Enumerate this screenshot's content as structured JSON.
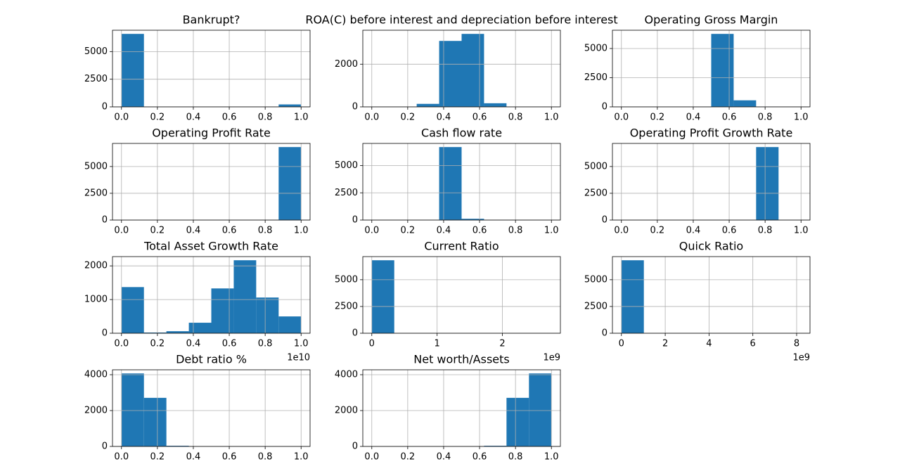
{
  "chart_data": [
    {
      "type": "histogram",
      "title": "Bankrupt?",
      "bins": [
        0,
        0.125,
        0.25,
        0.375,
        0.5,
        0.625,
        0.75,
        0.875,
        1
      ],
      "counts": [
        6599,
        0,
        0,
        0,
        0,
        0,
        0,
        220
      ],
      "xlim": [
        -0.05,
        1.05
      ],
      "ylim": [
        0,
        6929
      ],
      "xticks": [
        {
          "value": 0,
          "label": "0.0"
        },
        {
          "value": 0.2,
          "label": "0.2"
        },
        {
          "value": 0.4,
          "label": "0.4"
        },
        {
          "value": 0.6,
          "label": "0.6"
        },
        {
          "value": 0.8,
          "label": "0.8"
        },
        {
          "value": 1,
          "label": "1.0"
        }
      ],
      "yticks": [
        0,
        2500,
        5000
      ],
      "grid": true,
      "color": "#1f77b4"
    },
    {
      "type": "histogram",
      "title": "ROA(C) before interest and depreciation before interest",
      "bins": [
        0,
        0.125,
        0.25,
        0.375,
        0.5,
        0.625,
        0.75,
        0.875,
        1
      ],
      "counts": [
        0,
        0,
        140,
        3090,
        3420,
        169,
        0,
        0
      ],
      "xlim": [
        -0.05,
        1.05
      ],
      "ylim": [
        0,
        3591
      ],
      "xticks": [
        {
          "value": 0,
          "label": "0.0"
        },
        {
          "value": 0.2,
          "label": "0.2"
        },
        {
          "value": 0.4,
          "label": "0.4"
        },
        {
          "value": 0.6,
          "label": "0.6"
        },
        {
          "value": 0.8,
          "label": "0.8"
        },
        {
          "value": 1,
          "label": "1.0"
        }
      ],
      "yticks": [
        0,
        2000
      ],
      "grid": true,
      "color": "#1f77b4"
    },
    {
      "type": "histogram",
      "title": "Operating Gross Margin",
      "bins": [
        0,
        0.125,
        0.25,
        0.375,
        0.5,
        0.625,
        0.75,
        0.875,
        1
      ],
      "counts": [
        0,
        0,
        0,
        0,
        6253,
        560,
        6,
        0
      ],
      "xlim": [
        -0.05,
        1.05
      ],
      "ylim": [
        0,
        6566
      ],
      "xticks": [
        {
          "value": 0,
          "label": "0.0"
        },
        {
          "value": 0.2,
          "label": "0.2"
        },
        {
          "value": 0.4,
          "label": "0.4"
        },
        {
          "value": 0.6,
          "label": "0.6"
        },
        {
          "value": 0.8,
          "label": "0.8"
        },
        {
          "value": 1,
          "label": "1.0"
        }
      ],
      "yticks": [
        0,
        2500,
        5000
      ],
      "grid": true,
      "color": "#1f77b4"
    },
    {
      "type": "histogram",
      "title": "Operating Profit Rate",
      "bins": [
        0,
        0.125,
        0.25,
        0.375,
        0.5,
        0.625,
        0.75,
        0.875,
        1
      ],
      "counts": [
        1,
        0,
        0,
        0,
        0,
        0,
        0,
        6818
      ],
      "xlim": [
        -0.05,
        1.05
      ],
      "ylim": [
        0,
        7159
      ],
      "xticks": [
        {
          "value": 0,
          "label": "0.0"
        },
        {
          "value": 0.2,
          "label": "0.2"
        },
        {
          "value": 0.4,
          "label": "0.4"
        },
        {
          "value": 0.6,
          "label": "0.6"
        },
        {
          "value": 0.8,
          "label": "0.8"
        },
        {
          "value": 1,
          "label": "1.0"
        }
      ],
      "yticks": [
        0,
        2500,
        5000
      ],
      "grid": true,
      "color": "#1f77b4"
    },
    {
      "type": "histogram",
      "title": "Cash flow rate",
      "bins": [
        0,
        0.125,
        0.25,
        0.375,
        0.5,
        0.625,
        0.75,
        0.875,
        1
      ],
      "counts": [
        1,
        0,
        0,
        6700,
        117,
        0,
        0,
        1
      ],
      "xlim": [
        -0.05,
        1.05
      ],
      "ylim": [
        0,
        7035
      ],
      "xticks": [
        {
          "value": 0,
          "label": "0.0"
        },
        {
          "value": 0.2,
          "label": "0.2"
        },
        {
          "value": 0.4,
          "label": "0.4"
        },
        {
          "value": 0.6,
          "label": "0.6"
        },
        {
          "value": 0.8,
          "label": "0.8"
        },
        {
          "value": 1,
          "label": "1.0"
        }
      ],
      "yticks": [
        0,
        2500,
        5000
      ],
      "grid": true,
      "color": "#1f77b4"
    },
    {
      "type": "histogram",
      "title": "Operating Profit Growth Rate",
      "bins": [
        0,
        0.125,
        0.25,
        0.375,
        0.5,
        0.625,
        0.75,
        0.875,
        1
      ],
      "counts": [
        1,
        0,
        0,
        0,
        0,
        0,
        6817,
        1
      ],
      "xlim": [
        -0.05,
        1.05
      ],
      "ylim": [
        0,
        7158
      ],
      "xticks": [
        {
          "value": 0,
          "label": "0.0"
        },
        {
          "value": 0.2,
          "label": "0.2"
        },
        {
          "value": 0.4,
          "label": "0.4"
        },
        {
          "value": 0.6,
          "label": "0.6"
        },
        {
          "value": 0.8,
          "label": "0.8"
        },
        {
          "value": 1,
          "label": "1.0"
        }
      ],
      "yticks": [
        0,
        2500,
        5000
      ],
      "grid": true,
      "color": "#1f77b4"
    },
    {
      "type": "histogram",
      "title": "Total Asset Growth Rate",
      "bins": [
        0,
        1250000000,
        2500000000,
        3750000000,
        5000000000,
        6250000000,
        7500000000,
        8750000000,
        10000000000
      ],
      "counts": [
        1370,
        21,
        60,
        312,
        1330,
        2167,
        1060,
        499
      ],
      "xlim": [
        -500000000,
        10500000000
      ],
      "ylim": [
        0,
        2275
      ],
      "xticks": [
        {
          "value": 0,
          "label": "0.0"
        },
        {
          "value": 2000000000,
          "label": "0.2"
        },
        {
          "value": 4000000000,
          "label": "0.4"
        },
        {
          "value": 6000000000,
          "label": "0.6"
        },
        {
          "value": 8000000000,
          "label": "0.8"
        },
        {
          "value": 10000000000,
          "label": "1.0"
        }
      ],
      "yticks": [
        0,
        1000,
        2000
      ],
      "x_offset_label": "1e10",
      "grid": true,
      "color": "#1f77b4"
    },
    {
      "type": "histogram",
      "title": "Current Ratio",
      "bins": [
        0,
        343750000,
        687500000,
        1031250000,
        1375000000,
        1718750000,
        2062500000,
        2406250000,
        2750000000
      ],
      "counts": [
        6818,
        0,
        0,
        0,
        0,
        0,
        0,
        1
      ],
      "xlim": [
        -137500000,
        2887500000
      ],
      "ylim": [
        0,
        7159
      ],
      "xticks": [
        {
          "value": 0,
          "label": "0"
        },
        {
          "value": 1000000000,
          "label": "1"
        },
        {
          "value": 2000000000,
          "label": "2"
        }
      ],
      "yticks": [
        0,
        2500,
        5000
      ],
      "x_offset_label": "1e9",
      "grid": true,
      "color": "#1f77b4"
    },
    {
      "type": "histogram",
      "title": "Quick Ratio",
      "bins": [
        0,
        1025000000,
        2050000000,
        3075000000,
        4100000000,
        5125000000,
        6150000000,
        7175000000,
        8200000000
      ],
      "counts": [
        6818,
        0,
        0,
        0,
        0,
        0,
        0,
        1
      ],
      "xlim": [
        -410000000,
        8610000000
      ],
      "ylim": [
        0,
        7159
      ],
      "xticks": [
        {
          "value": 0,
          "label": "0"
        },
        {
          "value": 2000000000,
          "label": "2"
        },
        {
          "value": 4000000000,
          "label": "4"
        },
        {
          "value": 6000000000,
          "label": "6"
        },
        {
          "value": 8000000000,
          "label": "8"
        }
      ],
      "yticks": [
        0,
        2500,
        5000
      ],
      "x_offset_label": "1e9",
      "grid": true,
      "color": "#1f77b4"
    },
    {
      "type": "histogram",
      "title": "Debt ratio %",
      "bins": [
        0,
        0.125,
        0.25,
        0.375,
        0.5,
        0.625,
        0.75,
        0.875,
        1
      ],
      "counts": [
        4070,
        2710,
        37,
        1,
        0,
        0,
        0,
        1
      ],
      "xlim": [
        -0.05,
        1.05
      ],
      "ylim": [
        0,
        4274
      ],
      "xticks": [
        {
          "value": 0,
          "label": "0.0"
        },
        {
          "value": 0.2,
          "label": "0.2"
        },
        {
          "value": 0.4,
          "label": "0.4"
        },
        {
          "value": 0.6,
          "label": "0.6"
        },
        {
          "value": 0.8,
          "label": "0.8"
        },
        {
          "value": 1,
          "label": "1.0"
        }
      ],
      "yticks": [
        0,
        2000,
        4000
      ],
      "grid": true,
      "color": "#1f77b4"
    },
    {
      "type": "histogram",
      "title": "Net worth/Assets",
      "bins": [
        0,
        0.125,
        0.25,
        0.375,
        0.5,
        0.625,
        0.75,
        0.875,
        1
      ],
      "counts": [
        1,
        0,
        0,
        0,
        1,
        37,
        2710,
        4070
      ],
      "xlim": [
        -0.05,
        1.05
      ],
      "ylim": [
        0,
        4274
      ],
      "xticks": [
        {
          "value": 0,
          "label": "0.0"
        },
        {
          "value": 0.2,
          "label": "0.2"
        },
        {
          "value": 0.4,
          "label": "0.4"
        },
        {
          "value": 0.6,
          "label": "0.6"
        },
        {
          "value": 0.8,
          "label": "0.8"
        },
        {
          "value": 1,
          "label": "1.0"
        }
      ],
      "yticks": [
        0,
        2000,
        4000
      ],
      "grid": true,
      "color": "#1f77b4"
    }
  ]
}
